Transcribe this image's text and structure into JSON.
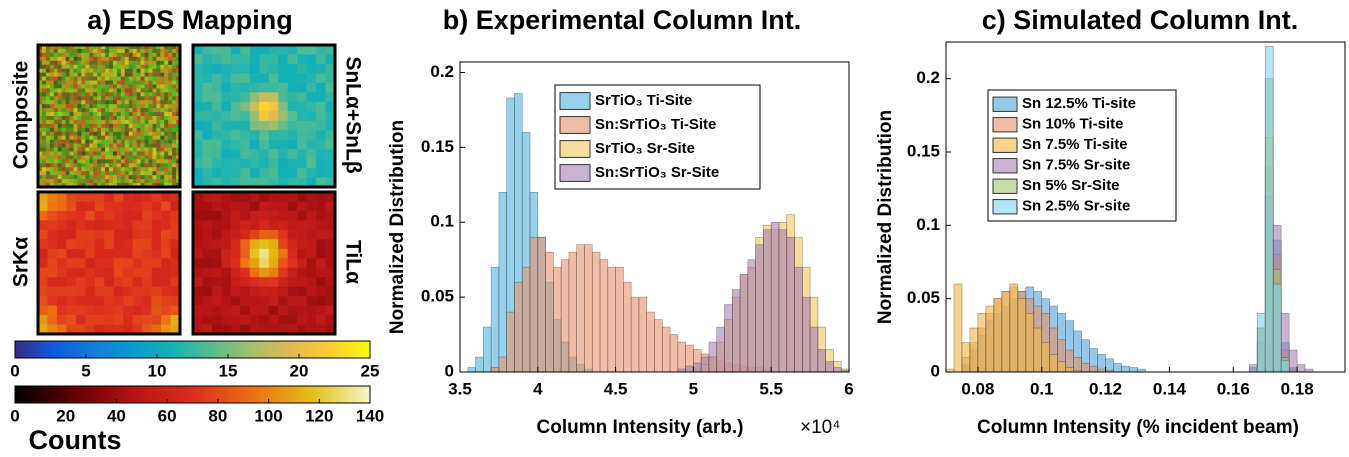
{
  "chart_data": [
    {
      "type": "image",
      "title": "a) EDS Mapping",
      "labels": [
        "Composite",
        "SnLα+SnLβ",
        "SrKα",
        "TiLα"
      ],
      "colorbars": [
        {
          "lim": [
            0,
            25
          ],
          "ticks": [
            0,
            5,
            10,
            15,
            20,
            25
          ]
        },
        {
          "lim": [
            0,
            140
          ],
          "ticks": [
            0,
            20,
            40,
            60,
            80,
            100,
            120,
            140
          ]
        }
      ],
      "colorbar_label": "Counts"
    },
    {
      "type": "histogram",
      "title": "b) Experimental Column Int.",
      "xlabel": "Column Intensity (arb.)",
      "ylabel": "Normalized Distribution",
      "x_multiplier": "×10⁴",
      "bins": [
        35000,
        35500,
        36000,
        36500,
        37000,
        37500,
        38000,
        38500,
        39000,
        39500,
        40000,
        40500,
        41000,
        41500,
        42000,
        42500,
        43000,
        43500,
        44000,
        44500,
        45000,
        45500,
        46000,
        46500,
        47000,
        47500,
        48000,
        48500,
        49000,
        49500,
        50000,
        50500,
        51000,
        51500,
        52000,
        52500,
        53000,
        53500,
        54000,
        54500,
        55000,
        55500,
        56000,
        56500,
        57000,
        57500,
        58000,
        58500,
        59000,
        59500,
        60000
      ],
      "series": [
        {
          "name": "SrTiO₃ Ti-Site",
          "color": "#4fb3e0",
          "values": [
            0,
            0.003,
            0.01,
            0.03,
            0.07,
            0.12,
            0.183,
            0.186,
            0.16,
            0.12,
            0.09,
            0.06,
            0.035,
            0.02,
            0.01,
            0.005,
            0.002,
            0,
            0,
            0,
            0,
            0,
            0,
            0,
            0,
            0,
            0,
            0,
            0,
            0,
            0,
            0,
            0,
            0,
            0,
            0,
            0,
            0,
            0,
            0,
            0,
            0,
            0,
            0,
            0,
            0,
            0,
            0,
            0,
            0
          ]
        },
        {
          "name": "Sn:SrTiO₃ Ti-Site",
          "color": "#e8916b",
          "values": [
            0,
            0,
            0,
            0,
            0.003,
            0.01,
            0.04,
            0.06,
            0.07,
            0.09,
            0.09,
            0.08,
            0.07,
            0.075,
            0.08,
            0.085,
            0.085,
            0.08,
            0.075,
            0.07,
            0.07,
            0.06,
            0.05,
            0.05,
            0.04,
            0.035,
            0.03,
            0.025,
            0.02,
            0.018,
            0.015,
            0.012,
            0.01,
            0.008,
            0.006,
            0.005,
            0.004,
            0.003,
            0.003,
            0.002,
            0,
            0,
            0,
            0,
            0,
            0,
            0,
            0,
            0,
            0
          ]
        },
        {
          "name": "SrTiO₃ Sr-Site",
          "color": "#f2c75c",
          "values": [
            0,
            0,
            0,
            0,
            0,
            0,
            0,
            0,
            0,
            0,
            0,
            0,
            0,
            0,
            0,
            0,
            0,
            0,
            0,
            0,
            0,
            0,
            0,
            0,
            0,
            0,
            0,
            0,
            0,
            0,
            0.002,
            0.005,
            0.01,
            0.02,
            0.035,
            0.05,
            0.065,
            0.07,
            0.09,
            0.098,
            0.095,
            0.1,
            0.105,
            0.09,
            0.07,
            0.05,
            0.03,
            0.015,
            0.007,
            0.002
          ]
        },
        {
          "name": "Sn:SrTiO₃ Sr-Site",
          "color": "#a77fb5",
          "values": [
            0,
            0,
            0,
            0,
            0,
            0,
            0,
            0,
            0,
            0,
            0,
            0,
            0,
            0,
            0,
            0,
            0,
            0,
            0,
            0,
            0,
            0,
            0,
            0,
            0,
            0,
            0,
            0,
            0.002,
            0.004,
            0.006,
            0.01,
            0.02,
            0.03,
            0.045,
            0.055,
            0.065,
            0.075,
            0.085,
            0.095,
            0.1,
            0.095,
            0.09,
            0.07,
            0.05,
            0.03,
            0.015,
            0.007,
            0.003,
            0.001
          ]
        }
      ],
      "xlim": [
        35000,
        60000
      ],
      "ylim": [
        0,
        0.207
      ],
      "xticks": [
        {
          "value": 35000,
          "label": "3.5"
        },
        {
          "value": 40000,
          "label": "4"
        },
        {
          "value": 45000,
          "label": "4.5"
        },
        {
          "value": 50000,
          "label": "5"
        },
        {
          "value": 55000,
          "label": "5.5"
        },
        {
          "value": 60000,
          "label": "6"
        }
      ],
      "yticks": [
        0,
        0.05,
        0.1,
        0.15,
        0.2
      ],
      "legend": "upper center"
    },
    {
      "type": "histogram",
      "title": "c) Simulated Column Int.",
      "xlabel": "Column Intensity (% incident beam)",
      "ylabel": "Normalized Distribution",
      "bins": [
        0.07,
        0.0725,
        0.075,
        0.0775,
        0.08,
        0.0825,
        0.085,
        0.0875,
        0.09,
        0.0925,
        0.095,
        0.0975,
        0.1,
        0.1025,
        0.105,
        0.1075,
        0.11,
        0.1125,
        0.115,
        0.1175,
        0.12,
        0.1225,
        0.125,
        0.1275,
        0.13,
        0.1325,
        0.135,
        0.1375,
        0.14,
        0.1425,
        0.145,
        0.1475,
        0.15,
        0.1525,
        0.155,
        0.1575,
        0.16,
        0.1625,
        0.165,
        0.1675,
        0.17,
        0.1725,
        0.175,
        0.1775,
        0.18,
        0.1825,
        0.185,
        0.1875,
        0.19,
        0.1925,
        0.195
      ],
      "series": [
        {
          "name": "Sn 12.5% Ti-site",
          "color": "#4fa3d9",
          "values": [
            0,
            0,
            0.005,
            0.015,
            0.025,
            0.035,
            0.04,
            0.045,
            0.05,
            0.055,
            0.058,
            0.055,
            0.05,
            0.045,
            0.04,
            0.035,
            0.028,
            0.022,
            0.016,
            0.012,
            0.009,
            0.006,
            0.004,
            0.003,
            0.002,
            0,
            0,
            0,
            0,
            0,
            0,
            0,
            0,
            0,
            0,
            0,
            0,
            0,
            0.003,
            0.02,
            0.12,
            0.09,
            0.02,
            0.003,
            0,
            0,
            0,
            0,
            0,
            0
          ]
        },
        {
          "name": "Sn 10% Ti-site",
          "color": "#e8916b",
          "values": [
            0,
            0,
            0.01,
            0.02,
            0.03,
            0.04,
            0.05,
            0.055,
            0.058,
            0.055,
            0.05,
            0.045,
            0.04,
            0.03,
            0.022,
            0.015,
            0.01,
            0.006,
            0.004,
            0.002,
            0.001,
            0,
            0,
            0,
            0,
            0,
            0,
            0,
            0,
            0,
            0,
            0,
            0,
            0,
            0,
            0,
            0,
            0,
            0,
            0.02,
            0.14,
            0.08,
            0.015,
            0.002,
            0,
            0,
            0,
            0,
            0,
            0
          ]
        },
        {
          "name": "Sn 7.5% Ti-site",
          "color": "#f0b640",
          "values": [
            0.002,
            0.06,
            0.02,
            0.03,
            0.04,
            0.045,
            0.05,
            0.055,
            0.06,
            0.05,
            0.04,
            0.03,
            0.02,
            0.012,
            0.007,
            0.003,
            0.001,
            0,
            0,
            0,
            0,
            0,
            0,
            0,
            0,
            0,
            0,
            0,
            0,
            0,
            0,
            0,
            0,
            0,
            0,
            0,
            0,
            0,
            0,
            0.015,
            0.16,
            0.06,
            0.01,
            0,
            0,
            0,
            0,
            0,
            0,
            0
          ]
        },
        {
          "name": "Sn 7.5% Sr-site",
          "color": "#a77fb5",
          "values": [
            0,
            0,
            0,
            0,
            0,
            0,
            0,
            0,
            0,
            0,
            0,
            0,
            0,
            0,
            0,
            0,
            0,
            0,
            0,
            0,
            0,
            0,
            0,
            0,
            0,
            0,
            0,
            0,
            0,
            0,
            0,
            0,
            0,
            0,
            0,
            0,
            0,
            0,
            0.005,
            0.03,
            0.12,
            0.1,
            0.04,
            0.015,
            0.005,
            0.002,
            0,
            0,
            0,
            0
          ]
        },
        {
          "name": "Sn 5% Sr-Site",
          "color": "#9cc46a",
          "values": [
            0,
            0,
            0,
            0,
            0,
            0,
            0,
            0,
            0,
            0,
            0,
            0,
            0,
            0,
            0,
            0,
            0,
            0,
            0,
            0,
            0,
            0,
            0,
            0,
            0,
            0,
            0,
            0,
            0,
            0,
            0,
            0,
            0,
            0,
            0,
            0,
            0,
            0,
            0,
            0.03,
            0.2,
            0.07,
            0.01,
            0,
            0,
            0,
            0,
            0,
            0,
            0
          ]
        },
        {
          "name": "Sn 2.5% Sr-site",
          "color": "#7fd3f0",
          "values": [
            0,
            0,
            0,
            0,
            0,
            0,
            0,
            0,
            0,
            0,
            0,
            0,
            0,
            0,
            0,
            0,
            0,
            0,
            0,
            0,
            0,
            0,
            0,
            0,
            0,
            0,
            0,
            0,
            0,
            0,
            0,
            0,
            0,
            0,
            0,
            0,
            0,
            0,
            0,
            0.04,
            0.222,
            0.06,
            0.008,
            0,
            0,
            0,
            0,
            0,
            0,
            0
          ]
        }
      ],
      "xlim": [
        0.07,
        0.195
      ],
      "ylim": [
        0,
        0.225
      ],
      "xticks": [
        0.08,
        0.1,
        0.12,
        0.14,
        0.16,
        0.18
      ],
      "yticks": [
        0,
        0.05,
        0.1,
        0.15,
        0.2
      ],
      "legend": "upper left"
    }
  ]
}
